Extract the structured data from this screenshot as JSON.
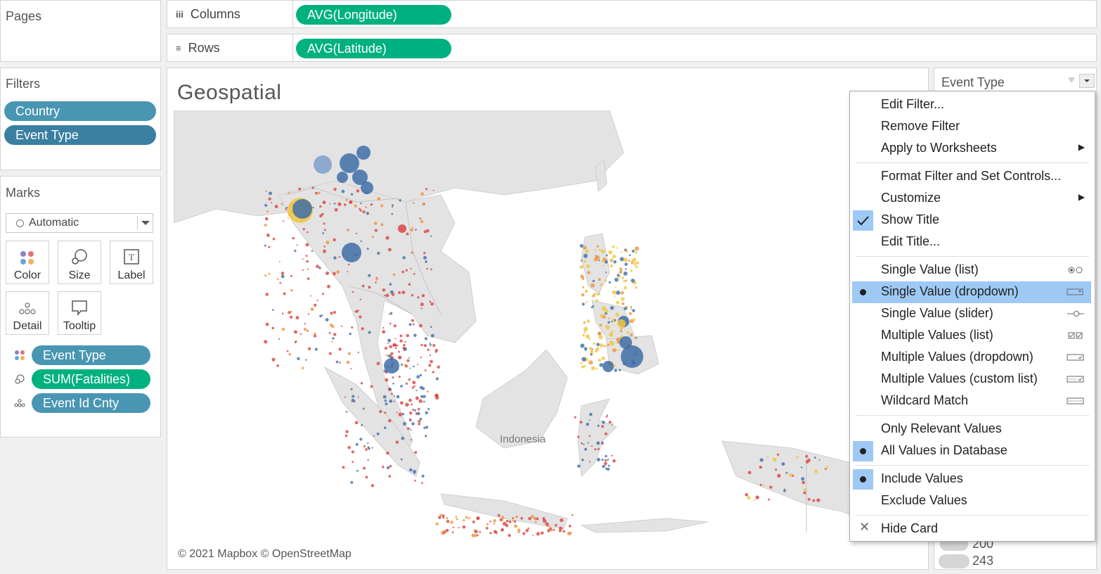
{
  "pages": {
    "title": "Pages"
  },
  "shelves": {
    "columns": {
      "label": "Columns",
      "pill": "AVG(Longitude)"
    },
    "rows": {
      "label": "Rows",
      "pill": "AVG(Latitude)"
    }
  },
  "filters": {
    "title": "Filters",
    "items": [
      "Country",
      "Event Type"
    ]
  },
  "marks": {
    "title": "Marks",
    "type": "Automatic",
    "buttons": [
      "Color",
      "Size",
      "Label",
      "Detail",
      "Tooltip"
    ],
    "fields": [
      {
        "icon": "color-icon",
        "label": "Event Type"
      },
      {
        "icon": "size-icon",
        "label": "SUM(Fatalities)"
      },
      {
        "icon": "detail-icon",
        "label": "Event Id Cnty"
      }
    ]
  },
  "view": {
    "title": "Geospatial",
    "map_label": "Indonesia",
    "attribution": "© 2021 Mapbox © OpenStreetMap"
  },
  "filter_card": {
    "title": "Event Type"
  },
  "size_legend": {
    "values": [
      "200",
      "243"
    ]
  },
  "context_menu": {
    "groups": [
      [
        {
          "label": "Edit Filter..."
        },
        {
          "label": "Remove Filter"
        },
        {
          "label": "Apply to Worksheets",
          "submenu": true
        }
      ],
      [
        {
          "label": "Format Filter and Set Controls..."
        },
        {
          "label": "Customize",
          "submenu": true
        },
        {
          "label": "Show Title",
          "checked": true
        },
        {
          "label": "Edit Title..."
        }
      ],
      [
        {
          "label": "Single Value (list)",
          "icon": "radio-list-icon"
        },
        {
          "label": "Single Value (dropdown)",
          "icon": "dropdown-icon",
          "selected": true
        },
        {
          "label": "Single Value (slider)",
          "icon": "slider-icon"
        },
        {
          "label": "Multiple Values (list)",
          "icon": "checkbox-list-icon"
        },
        {
          "label": "Multiple Values (dropdown)",
          "icon": "checkbox-dropdown-icon"
        },
        {
          "label": "Multiple Values (custom list)",
          "icon": "custom-list-icon"
        },
        {
          "label": "Wildcard Match",
          "icon": "wildcard-icon"
        }
      ],
      [
        {
          "label": "Only Relevant Values"
        },
        {
          "label": "All Values in Database",
          "bullet": true
        }
      ],
      [
        {
          "label": "Include Values",
          "bullet": true
        },
        {
          "label": "Exclude Values"
        }
      ],
      [
        {
          "label": "Hide Card",
          "icon": "close-icon"
        }
      ]
    ]
  },
  "colors": {
    "pill_green": "#00b180",
    "pill_blue": "#4996b2",
    "menu_highlight": "#9ec9f5",
    "map_land": "#e3e3e3",
    "mark_blue": "#3e6fa8",
    "mark_red": "#d9453e",
    "mark_orange": "#f0923b",
    "mark_yellow": "#f2c53d"
  }
}
